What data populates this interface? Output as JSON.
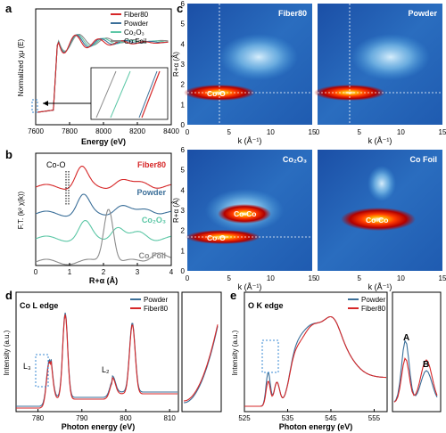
{
  "colors": {
    "fiber": "#d62728",
    "powder": "#3b6f99",
    "co3o4": "#5cc7a6",
    "cofoil": "#8c8c8c",
    "wt_low": "#0a2a7a",
    "wt_mid": "#4aa3df",
    "wt_hot": "#ff3b00"
  },
  "panels": {
    "a": "a",
    "b": "b",
    "c": "c",
    "d": "d",
    "e": "e"
  },
  "text": {
    "a_ylabel": "Normalized χμ (E)",
    "a_xlabel": "Energy (eV)",
    "b_ylabel": "F.T. (k² χ(k))",
    "b_xlabel": "R+α (Å)",
    "b_peak": "Co-O",
    "c_ylabel_top": "R+α (Å)",
    "c_ylabel_bot": "R+α (Å)",
    "c_xlabel": "k (Å⁻¹)",
    "d_title": "Co L edge",
    "d_xlabel": "Photon energy (eV)",
    "d_ylabel": "Intensity (a.u.)",
    "d_L3": "L₃",
    "d_L2": "L₂",
    "e_title": "O K edge",
    "e_xlabel": "Photon energy (eV)",
    "e_ylabel": "Intensity (a.u.)",
    "e_A": "A",
    "e_B": "B"
  },
  "chart_data": [
    {
      "panel": "a",
      "type": "line",
      "xlabel": "Energy (eV)",
      "ylabel": "Normalized χμ (E)",
      "xlim": [
        7600,
        8400
      ],
      "xticks": [
        7600,
        7800,
        8000,
        8200,
        8400
      ],
      "legend": [
        "Fiber80",
        "Powder",
        "Co₂O₃",
        "Co Foil"
      ],
      "legend_position": "top-right",
      "inset": "zoom of pre-edge region"
    },
    {
      "panel": "b",
      "type": "line",
      "xlabel": "R+α (Å)",
      "ylabel": "F.T. (k² χ(k))",
      "xlim": [
        0,
        4
      ],
      "xticks": [
        0,
        1,
        2,
        3,
        4
      ],
      "series_labels": [
        "Fiber80",
        "Powder",
        "Co₂O₃",
        "Co Foil"
      ],
      "annotation": "Co-O"
    },
    {
      "panel": "c",
      "type": "heatmap",
      "xlabel": "k (Å⁻¹)",
      "ylabel": "R+α (Å)",
      "xlim": [
        0,
        15
      ],
      "ylim": [
        0,
        6
      ],
      "xticks": [
        0,
        5,
        10,
        15
      ],
      "yticks": [
        0,
        1,
        2,
        3,
        4,
        5,
        6
      ],
      "maps": [
        {
          "name": "Fiber80",
          "labels": [
            "Co-O"
          ]
        },
        {
          "name": "Powder",
          "labels": [
            "Co-O"
          ]
        },
        {
          "name": "Co₂O₃",
          "labels": [
            "Co-Co",
            "Co-O"
          ]
        },
        {
          "name": "Co Foil",
          "labels": [
            "Co-Co"
          ]
        }
      ]
    },
    {
      "panel": "d",
      "type": "line",
      "title": "Co L edge",
      "xlabel": "Photon energy (eV)",
      "ylabel": "Intensity (a.u.)",
      "xlim": [
        775,
        812
      ],
      "xticks": [
        780,
        790,
        800,
        810
      ],
      "legend": [
        "Powder",
        "Fiber80"
      ],
      "legend_position": "top-right",
      "annotations": [
        "L₃",
        "L₂"
      ]
    },
    {
      "panel": "e",
      "type": "line",
      "title": "O K edge",
      "xlabel": "Photon energy (eV)",
      "ylabel": "Intensity (a.u.)",
      "xlim": [
        525,
        558
      ],
      "xticks": [
        525,
        535,
        545,
        555
      ],
      "legend": [
        "Powder",
        "Fiber80"
      ],
      "legend_position": "top-right",
      "annotations": [
        "A",
        "B"
      ]
    }
  ]
}
